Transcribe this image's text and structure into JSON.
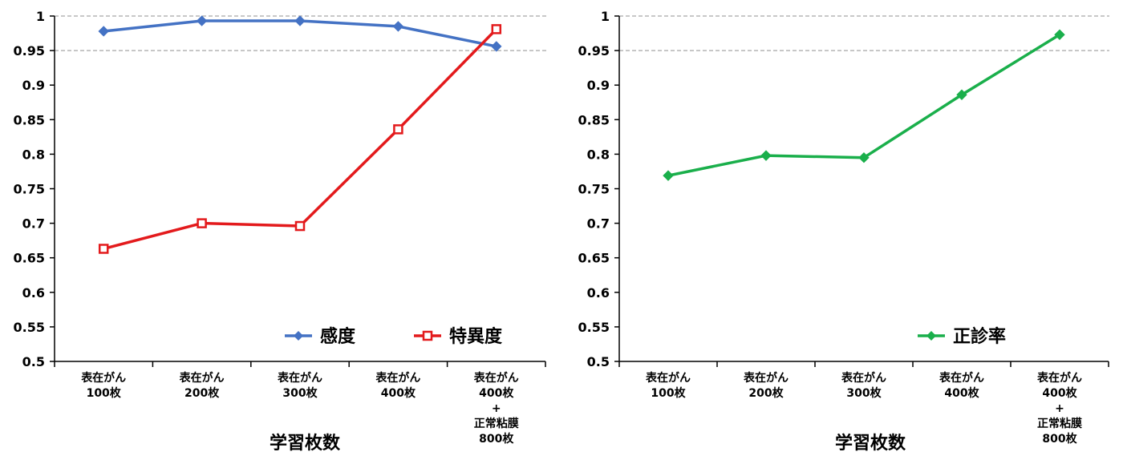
{
  "chart_data": [
    {
      "type": "line",
      "xlabel": "学習枚数",
      "categories": [
        [
          "表在がん",
          "100枚"
        ],
        [
          "表在がん",
          "200枚"
        ],
        [
          "表在がん",
          "300枚"
        ],
        [
          "表在がん",
          "400枚"
        ],
        [
          "表在がん",
          "400枚",
          "+",
          "正常粘膜",
          "800枚"
        ]
      ],
      "ylim": [
        0.5,
        1.0
      ],
      "yticks": [
        1,
        0.95,
        0.9,
        0.85,
        0.8,
        0.75,
        0.7,
        0.65,
        0.6,
        0.55,
        0.5
      ],
      "ytick_labels": [
        "1",
        "0.95",
        "0.9",
        "0.85",
        "0.8",
        "0.75",
        "0.7",
        "0.65",
        "0.6",
        "0.55",
        "0.5"
      ],
      "reference_lines": [
        1.0,
        0.95
      ],
      "legend_position": "bottom-right",
      "series": [
        {
          "name": "感度",
          "color": "#4472C4",
          "marker": "diamond",
          "values": [
            0.978,
            0.993,
            0.993,
            0.985,
            0.956
          ]
        },
        {
          "name": "特異度",
          "color": "#E31A1C",
          "marker": "square",
          "values": [
            0.663,
            0.7,
            0.696,
            0.836,
            0.981
          ]
        }
      ]
    },
    {
      "type": "line",
      "xlabel": "学習枚数",
      "categories": [
        [
          "表在がん",
          "100枚"
        ],
        [
          "表在がん",
          "200枚"
        ],
        [
          "表在がん",
          "300枚"
        ],
        [
          "表在がん",
          "400枚"
        ],
        [
          "表在がん",
          "400枚",
          "+",
          "正常粘膜",
          "800枚"
        ]
      ],
      "ylim": [
        0.5,
        1.0
      ],
      "yticks": [
        1,
        0.95,
        0.9,
        0.85,
        0.8,
        0.75,
        0.7,
        0.65,
        0.6,
        0.55,
        0.5
      ],
      "ytick_labels": [
        "1",
        "0.95",
        "0.9",
        "0.85",
        "0.8",
        "0.75",
        "0.7",
        "0.65",
        "0.6",
        "0.55",
        "0.5"
      ],
      "reference_lines": [
        1.0,
        0.95
      ],
      "legend_position": "bottom-right",
      "series": [
        {
          "name": "正診率",
          "color": "#1AAF4B",
          "marker": "diamond",
          "values": [
            0.769,
            0.798,
            0.795,
            0.886,
            0.973
          ]
        }
      ]
    }
  ]
}
